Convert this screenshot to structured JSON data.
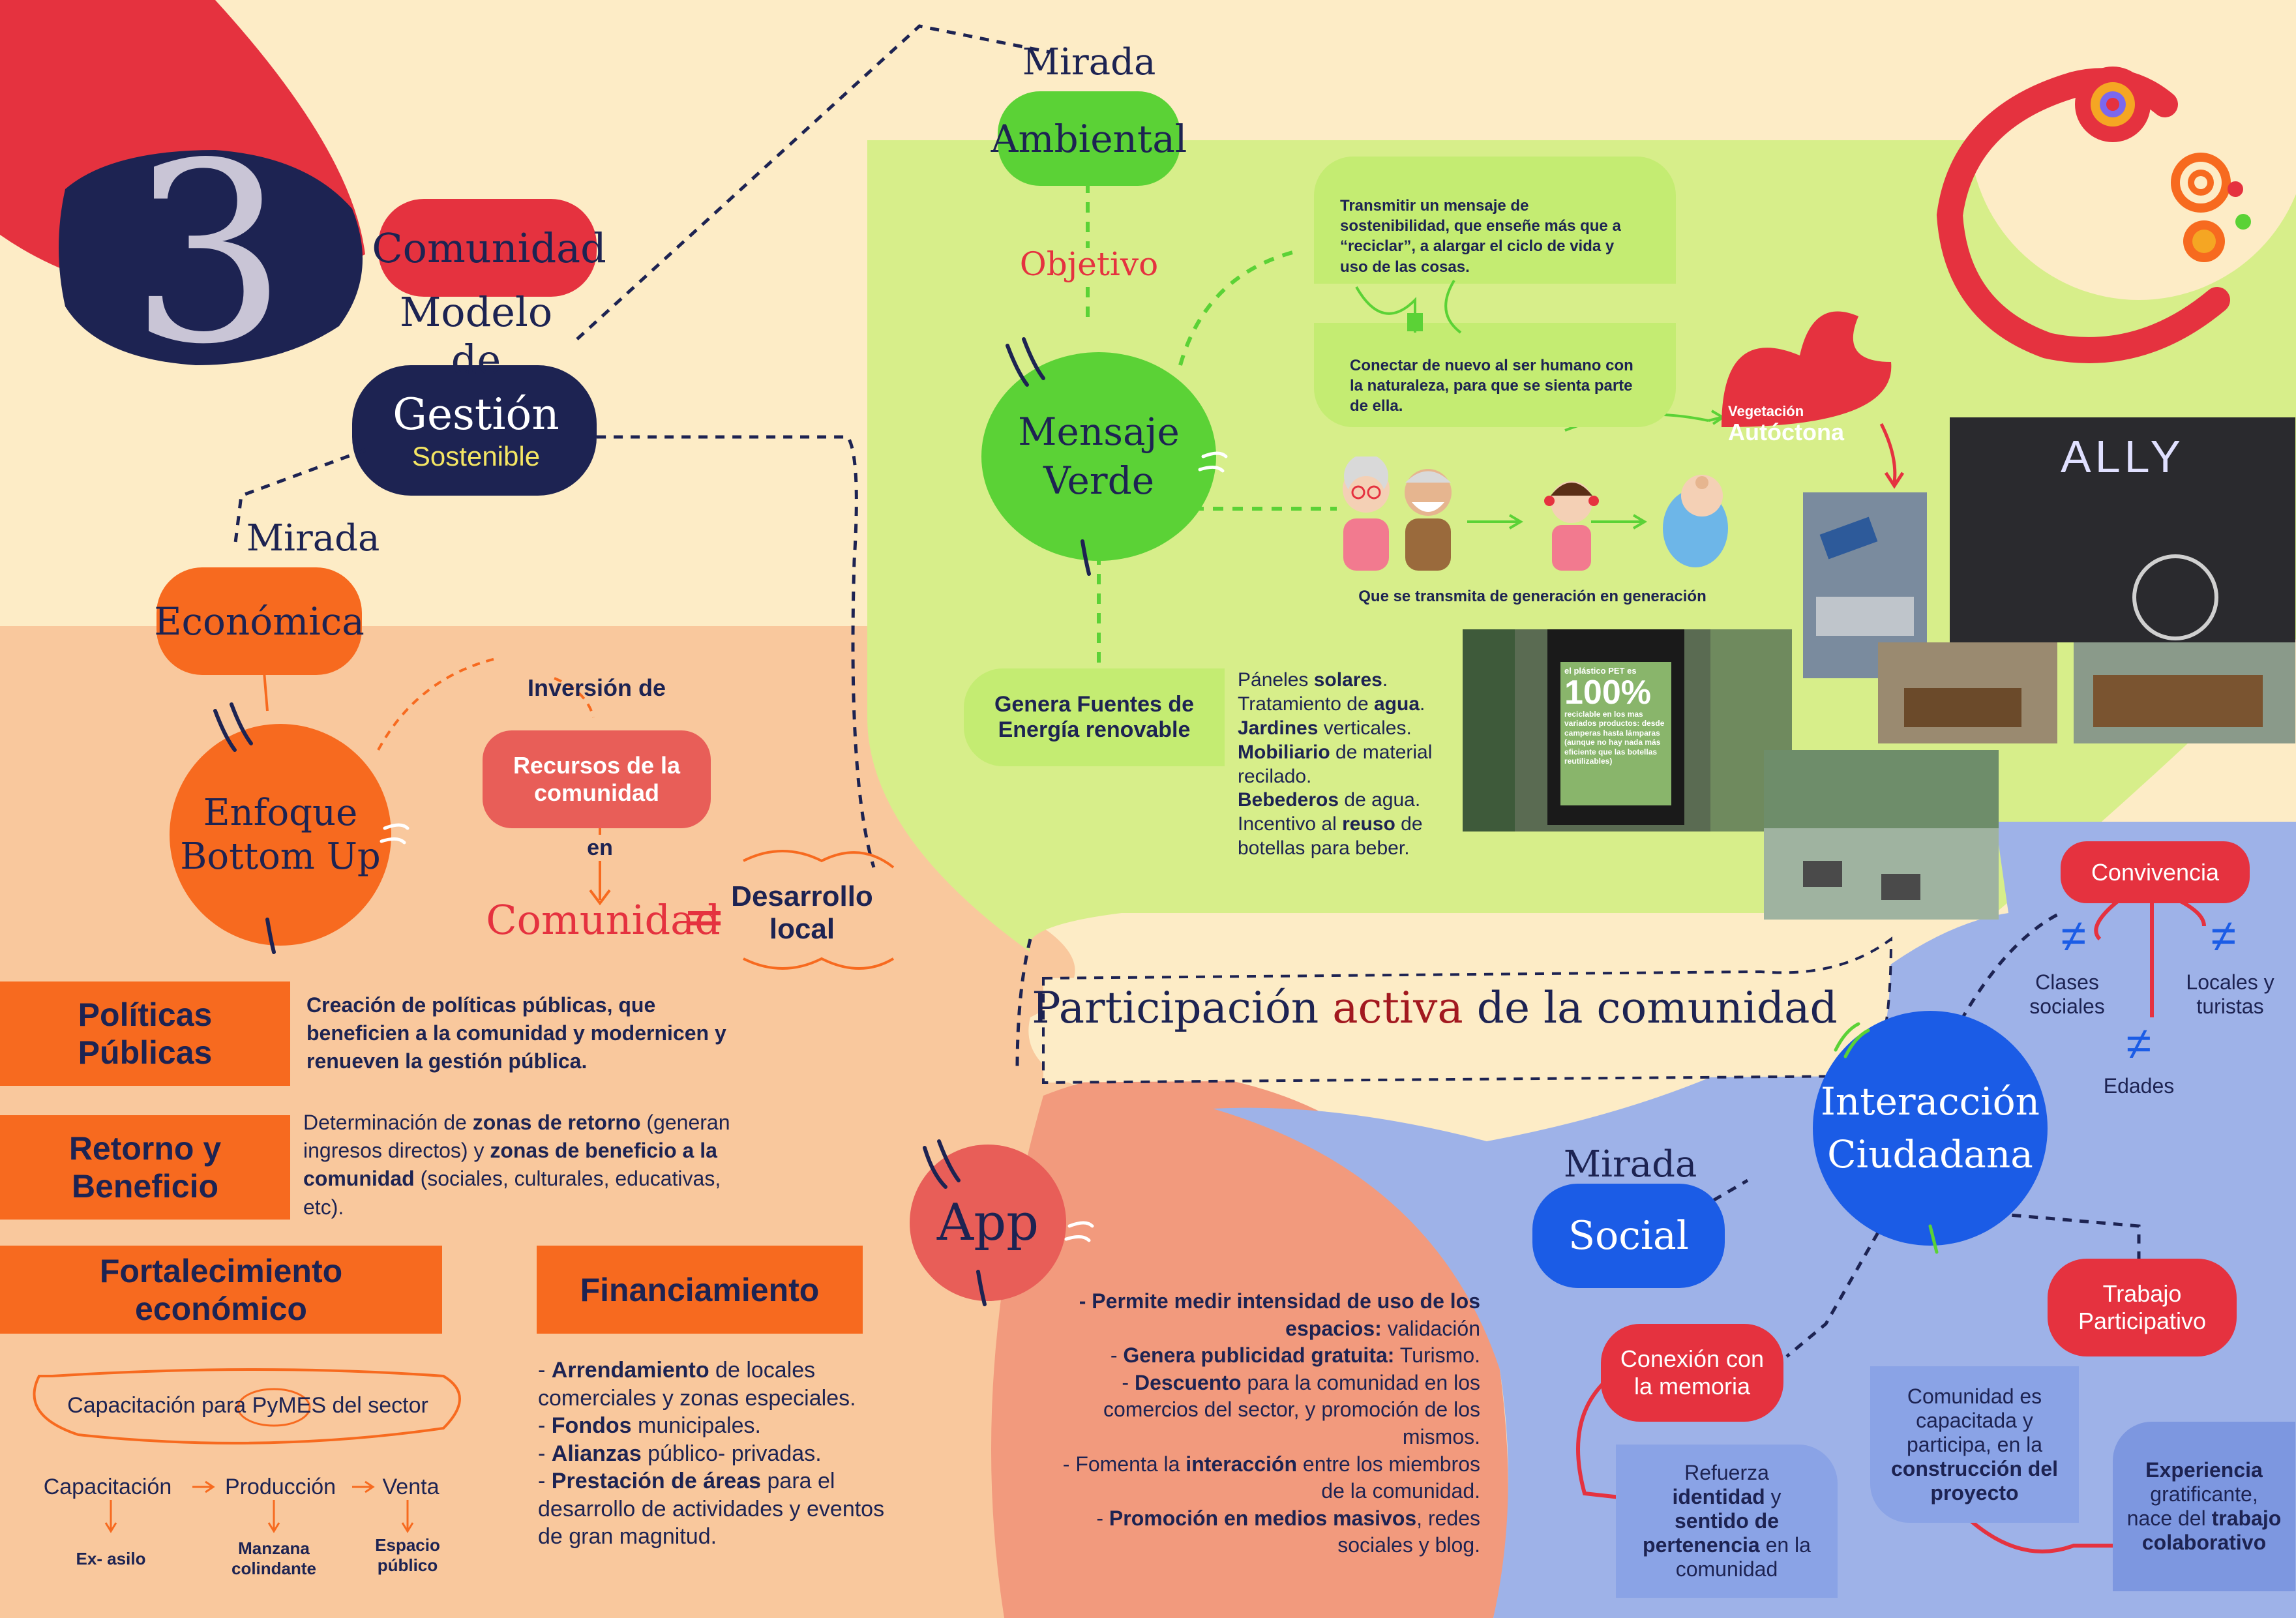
{
  "colors": {
    "cream": "#fdecc6",
    "peach": "#f9c89d",
    "lime": "#d7ee8a",
    "green": "#5bd236",
    "orange": "#f76a1f",
    "red": "#e5323f",
    "navy": "#1d2352",
    "blue": "#1b5ce6",
    "periwinkle": "#9eb2e8",
    "salmon": "#f29a7d"
  },
  "header": {
    "number": "3",
    "title": "Comunidad",
    "model_prefix": "Modelo de",
    "model_name": "Gestión",
    "model_sub": "Sostenible"
  },
  "economica": {
    "mirada": "Mirada",
    "label": "Económica",
    "enfoque_line1": "Enfoque",
    "enfoque_line2": "Bottom Up",
    "inversion": "Inversión de",
    "recursos": "Recursos de la comunidad",
    "en": "en",
    "comunidad": "Comunidad",
    "equals": "=",
    "desarrollo": "Desarrollo local"
  },
  "boxes": [
    {
      "label": "Políticas Públicas",
      "text_html": "Creación de <b>políticas públicas</b>, que beneficien a la comunidad y modernicen y renueven la gestión pública."
    },
    {
      "label": "Retorno y Beneficio",
      "text_html": "Determinación de <b>zonas de retorno</b> (generan ingresos directos) y <b>zonas de beneficio a la comunidad</b> (sociales, culturales, educativas, etc)."
    },
    {
      "label": "Fortalecimiento económico"
    },
    {
      "label": "Financiamiento"
    }
  ],
  "capacitacion": {
    "title": "Capacitación para PyMES del sector",
    "steps": [
      "Capacitación",
      "Producción",
      "Venta"
    ],
    "places": [
      "Ex- asilo",
      "Manzana colindante",
      "Espacio público"
    ]
  },
  "financiamiento": {
    "items_html": [
      "- <b>Arrendamiento</b> de locales comerciales y zonas especiales.",
      "- <b>Fondos</b> municipales.",
      "- <b>Alianzas</b> público- privadas.",
      "- <b>Prestación de áreas</b> para el desarrollo de actividades y eventos de gran magnitud."
    ]
  },
  "ambiental": {
    "mirada": "Mirada",
    "label": "Ambiental",
    "objetivo": "Objetivo",
    "mensaje_line1": "Mensaje",
    "mensaje_line2": "Verde",
    "msg1": "Transmitir un mensaje de sostenibilidad, que enseñe más que a “reciclar”, a alargar el ciclo de vida y uso de las cosas.",
    "msg2": "Conectar de nuevo al ser humano con la naturaleza, para que se sienta parte de ella.",
    "vegetacion_small": "Vegetación",
    "vegetacion_big": "Autóctona",
    "generacion": "Que se transmita  de generación en generación",
    "energia": "Genera Fuentes de Energía renovable",
    "energia_list_html": "Páneles <b>solares</b>.<br>Tratamiento de <b>agua</b>.<br><b>Jardines</b> verticales.<br><b>Mobiliario</b> de material recilado.<br><b>Bebederos</b> de agua.<br>Incentivo al <b>reuso</b> de botellas para beber.",
    "pet_sign_small": "el plástico PET es",
    "pet_sign_big": "100%",
    "pet_sign_text": "reciclable en los mas variados productos: desde camperas hasta lámparas (aunque no hay nada más eficiente que las botellas reutilizables)",
    "photo_sign": "ALLY"
  },
  "participacion": {
    "pre": "Participación ",
    "accent": "activa",
    "post": " de la comunidad"
  },
  "app": {
    "label": "App",
    "items_html": [
      "<b>- Permite medir intensidad de uso de los espacios:</b> validación",
      "- <b>Genera publicidad gratuita:</b> Turismo.",
      "- <b>Descuento</b> para la comunidad en los comercios del sector, y promoción de los mismos.",
      "- Fomenta la <b>interacción</b> entre los miembros de la comunidad.",
      "- <b>Promoción en medios masivos</b>, redes sociales y blog."
    ]
  },
  "social": {
    "mirada": "Mirada",
    "label": "Social",
    "interaccion_line1": "Interacción",
    "interaccion_line2": "Ciudadana",
    "convivencia": "Convivencia",
    "neq": "≠",
    "clases": "Clases sociales",
    "locales": "Locales y turistas",
    "edades": "Edades",
    "conexion": "Conexión con la memoria",
    "refuerza_html": "Refuerza <b>identidad</b> y <b>sentido de pertenencia</b> en la comunidad",
    "trabajo": "Trabajo Participativo",
    "capacitada_html": "Comunidad es capacitada y participa, en la <b>construcción del proyecto</b>",
    "experiencia_html": "<b>Experiencia</b> gratificante, nace del <b>trabajo colaborativo</b>"
  }
}
